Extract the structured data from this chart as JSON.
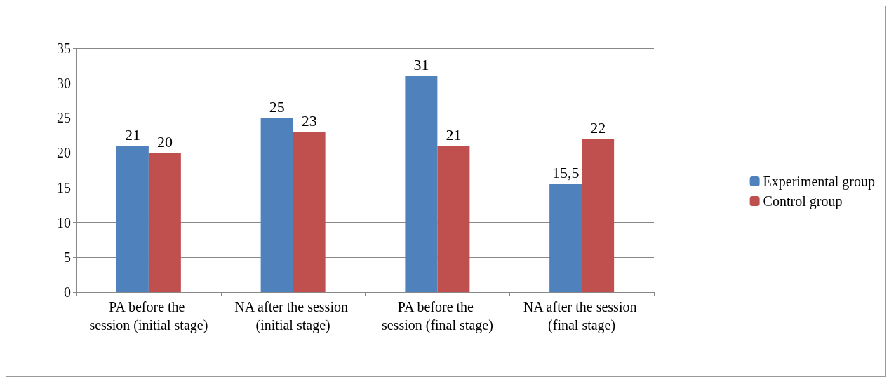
{
  "chart_data": {
    "type": "bar",
    "categories": [
      "PA before the session (initial stage)",
      "NA after the session (initial stage)",
      "PA before the session (final stage)",
      "NA after the session (final stage)"
    ],
    "series": [
      {
        "name": "Experimental group",
        "color": "#4f81bd",
        "values": [
          21,
          25,
          31,
          15.5
        ],
        "value_labels": [
          "21",
          "25",
          "31",
          "15,5"
        ]
      },
      {
        "name": "Control group",
        "color": "#c0504d",
        "values": [
          20,
          23,
          21,
          22
        ],
        "value_labels": [
          "20",
          "23",
          "21",
          "22"
        ]
      }
    ],
    "ylim": [
      0,
      35
    ],
    "yticks": [
      0,
      5,
      10,
      15,
      20,
      25,
      30,
      35
    ],
    "grid": "y",
    "legend": "right"
  }
}
